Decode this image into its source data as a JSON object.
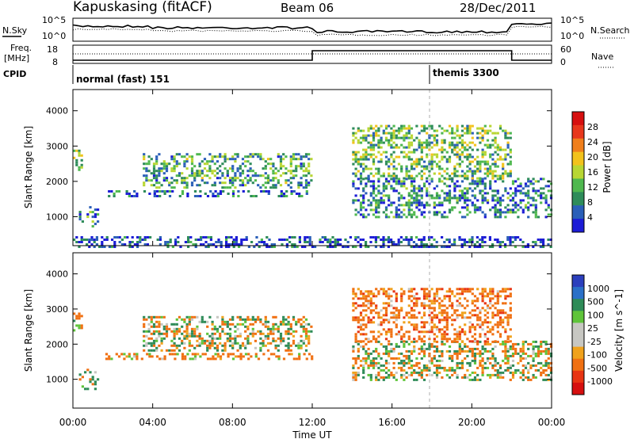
{
  "header": {
    "station": "Kapuskasing (fitACF)",
    "beam": "Beam 06",
    "date": "28/Dec/2011"
  },
  "top_panels": {
    "nsky_label": "N.Sky",
    "nsearch_label": "N.Search",
    "noise_ticks": [
      "10^5",
      "10^0"
    ],
    "freq_label_1": "Freq.",
    "freq_label_2": "[MHz]",
    "freq_ticks": [
      "18",
      "8"
    ],
    "nave_label": "Nave",
    "nave_ticks": [
      "60",
      "0"
    ],
    "cpid_label": "CPID",
    "cpid_entries": [
      {
        "name": "normal (fast) 151",
        "start_hour": 0
      },
      {
        "name": "themis 3300",
        "start_hour": 18
      }
    ]
  },
  "x_axis": {
    "label": "Time UT",
    "ticks": [
      "00:00",
      "04:00",
      "08:00",
      "12:00",
      "16:00",
      "20:00",
      "00:00"
    ],
    "range_hours": [
      0,
      24
    ]
  },
  "chart_data": [
    {
      "type": "heatmap",
      "panel": "power",
      "ylabel": "Slant Range [km]",
      "ylim": [
        180,
        4600
      ],
      "yticks": [
        "4000",
        "3000",
        "2000",
        "1000"
      ],
      "colorbar_label": "Power [dB]",
      "colorbar_ticks": [
        "28",
        "24",
        "20",
        "16",
        "12",
        "8",
        "4"
      ],
      "colorbar_colors": [
        "#1c1cd6",
        "#2a5fb8",
        "#2e8c5a",
        "#4fb84f",
        "#b8d633",
        "#f2c21c",
        "#f07f1c",
        "#e8371c",
        "#d60f0f"
      ],
      "regions": [
        {
          "t": [
            0.0,
            0.4
          ],
          "r": [
            2300,
            2900
          ],
          "v": 14
        },
        {
          "t": [
            0.3,
            1.2
          ],
          "r": [
            700,
            1300
          ],
          "v": 8
        },
        {
          "t": [
            1.5,
            12.0
          ],
          "r": [
            1550,
            1750
          ],
          "v": 6
        },
        {
          "t": [
            3.5,
            12.0
          ],
          "r": [
            1800,
            2800
          ],
          "v": 10
        },
        {
          "t": [
            0.0,
            24.0
          ],
          "r": [
            180,
            450
          ],
          "v": 4
        },
        {
          "t": [
            14.0,
            24.0
          ],
          "r": [
            1000,
            2100
          ],
          "v": 7
        },
        {
          "t": [
            14.0,
            22.0
          ],
          "r": [
            2100,
            3600
          ],
          "v": 12
        }
      ]
    },
    {
      "type": "heatmap",
      "panel": "velocity",
      "ylabel": "Slant Range [km]",
      "ylim": [
        180,
        4600
      ],
      "yticks": [
        "4000",
        "3000",
        "2000",
        "1000"
      ],
      "colorbar_label": "Velocity [m s^-1]",
      "colorbar_ticks": [
        "1000",
        "500",
        "100",
        "25",
        "-25",
        "-100",
        "-500",
        "-1000"
      ],
      "colorbar_colors": [
        "#2b3fbd",
        "#2a70c8",
        "#2e8b57",
        "#5fc43a",
        "#c7c7c2",
        "#c7c7c2",
        "#f0a21c",
        "#f07012",
        "#e83412",
        "#d60f0f"
      ],
      "regions": [
        {
          "t": [
            0.0,
            0.4
          ],
          "r": [
            2300,
            2900
          ],
          "v": -150
        },
        {
          "t": [
            0.3,
            1.2
          ],
          "r": [
            700,
            1300
          ],
          "v": 0
        },
        {
          "t": [
            1.5,
            12.0
          ],
          "r": [
            1550,
            1750
          ],
          "v": -200
        },
        {
          "t": [
            3.5,
            12.0
          ],
          "r": [
            1800,
            2800
          ],
          "v": 0
        },
        {
          "t": [
            14.0,
            24.0
          ],
          "r": [
            1000,
            2100
          ],
          "v": 0
        },
        {
          "t": [
            14.0,
            22.0
          ],
          "r": [
            2100,
            3600
          ],
          "v": -300
        }
      ]
    }
  ]
}
